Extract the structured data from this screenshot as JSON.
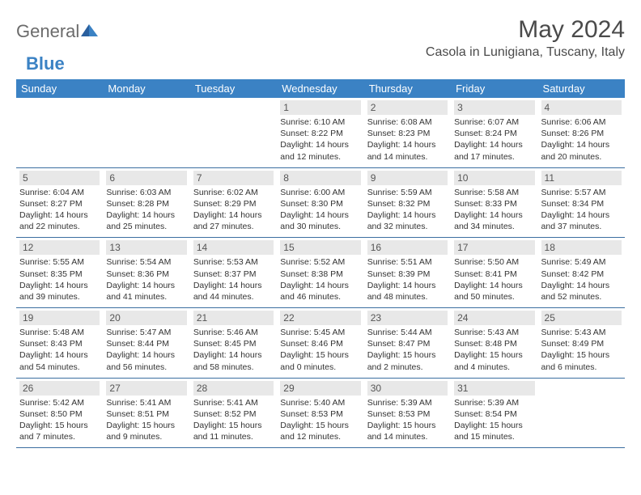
{
  "logo": {
    "text1": "General",
    "text2": "Blue"
  },
  "title": "May 2024",
  "location": "Casola in Lunigiana, Tuscany, Italy",
  "day_headers": [
    "Sunday",
    "Monday",
    "Tuesday",
    "Wednesday",
    "Thursday",
    "Friday",
    "Saturday"
  ],
  "colors": {
    "header_bg": "#3b82c4",
    "header_text": "#ffffff",
    "daynum_bg": "#e8e8e8",
    "daynum_text": "#555555",
    "border": "#3b6ea0",
    "title_color": "#4a4a4a"
  },
  "weeks": [
    [
      null,
      null,
      null,
      {
        "n": "1",
        "sr": "Sunrise: 6:10 AM",
        "ss": "Sunset: 8:22 PM",
        "d1": "Daylight: 14 hours",
        "d2": "and 12 minutes."
      },
      {
        "n": "2",
        "sr": "Sunrise: 6:08 AM",
        "ss": "Sunset: 8:23 PM",
        "d1": "Daylight: 14 hours",
        "d2": "and 14 minutes."
      },
      {
        "n": "3",
        "sr": "Sunrise: 6:07 AM",
        "ss": "Sunset: 8:24 PM",
        "d1": "Daylight: 14 hours",
        "d2": "and 17 minutes."
      },
      {
        "n": "4",
        "sr": "Sunrise: 6:06 AM",
        "ss": "Sunset: 8:26 PM",
        "d1": "Daylight: 14 hours",
        "d2": "and 20 minutes."
      }
    ],
    [
      {
        "n": "5",
        "sr": "Sunrise: 6:04 AM",
        "ss": "Sunset: 8:27 PM",
        "d1": "Daylight: 14 hours",
        "d2": "and 22 minutes."
      },
      {
        "n": "6",
        "sr": "Sunrise: 6:03 AM",
        "ss": "Sunset: 8:28 PM",
        "d1": "Daylight: 14 hours",
        "d2": "and 25 minutes."
      },
      {
        "n": "7",
        "sr": "Sunrise: 6:02 AM",
        "ss": "Sunset: 8:29 PM",
        "d1": "Daylight: 14 hours",
        "d2": "and 27 minutes."
      },
      {
        "n": "8",
        "sr": "Sunrise: 6:00 AM",
        "ss": "Sunset: 8:30 PM",
        "d1": "Daylight: 14 hours",
        "d2": "and 30 minutes."
      },
      {
        "n": "9",
        "sr": "Sunrise: 5:59 AM",
        "ss": "Sunset: 8:32 PM",
        "d1": "Daylight: 14 hours",
        "d2": "and 32 minutes."
      },
      {
        "n": "10",
        "sr": "Sunrise: 5:58 AM",
        "ss": "Sunset: 8:33 PM",
        "d1": "Daylight: 14 hours",
        "d2": "and 34 minutes."
      },
      {
        "n": "11",
        "sr": "Sunrise: 5:57 AM",
        "ss": "Sunset: 8:34 PM",
        "d1": "Daylight: 14 hours",
        "d2": "and 37 minutes."
      }
    ],
    [
      {
        "n": "12",
        "sr": "Sunrise: 5:55 AM",
        "ss": "Sunset: 8:35 PM",
        "d1": "Daylight: 14 hours",
        "d2": "and 39 minutes."
      },
      {
        "n": "13",
        "sr": "Sunrise: 5:54 AM",
        "ss": "Sunset: 8:36 PM",
        "d1": "Daylight: 14 hours",
        "d2": "and 41 minutes."
      },
      {
        "n": "14",
        "sr": "Sunrise: 5:53 AM",
        "ss": "Sunset: 8:37 PM",
        "d1": "Daylight: 14 hours",
        "d2": "and 44 minutes."
      },
      {
        "n": "15",
        "sr": "Sunrise: 5:52 AM",
        "ss": "Sunset: 8:38 PM",
        "d1": "Daylight: 14 hours",
        "d2": "and 46 minutes."
      },
      {
        "n": "16",
        "sr": "Sunrise: 5:51 AM",
        "ss": "Sunset: 8:39 PM",
        "d1": "Daylight: 14 hours",
        "d2": "and 48 minutes."
      },
      {
        "n": "17",
        "sr": "Sunrise: 5:50 AM",
        "ss": "Sunset: 8:41 PM",
        "d1": "Daylight: 14 hours",
        "d2": "and 50 minutes."
      },
      {
        "n": "18",
        "sr": "Sunrise: 5:49 AM",
        "ss": "Sunset: 8:42 PM",
        "d1": "Daylight: 14 hours",
        "d2": "and 52 minutes."
      }
    ],
    [
      {
        "n": "19",
        "sr": "Sunrise: 5:48 AM",
        "ss": "Sunset: 8:43 PM",
        "d1": "Daylight: 14 hours",
        "d2": "and 54 minutes."
      },
      {
        "n": "20",
        "sr": "Sunrise: 5:47 AM",
        "ss": "Sunset: 8:44 PM",
        "d1": "Daylight: 14 hours",
        "d2": "and 56 minutes."
      },
      {
        "n": "21",
        "sr": "Sunrise: 5:46 AM",
        "ss": "Sunset: 8:45 PM",
        "d1": "Daylight: 14 hours",
        "d2": "and 58 minutes."
      },
      {
        "n": "22",
        "sr": "Sunrise: 5:45 AM",
        "ss": "Sunset: 8:46 PM",
        "d1": "Daylight: 15 hours",
        "d2": "and 0 minutes."
      },
      {
        "n": "23",
        "sr": "Sunrise: 5:44 AM",
        "ss": "Sunset: 8:47 PM",
        "d1": "Daylight: 15 hours",
        "d2": "and 2 minutes."
      },
      {
        "n": "24",
        "sr": "Sunrise: 5:43 AM",
        "ss": "Sunset: 8:48 PM",
        "d1": "Daylight: 15 hours",
        "d2": "and 4 minutes."
      },
      {
        "n": "25",
        "sr": "Sunrise: 5:43 AM",
        "ss": "Sunset: 8:49 PM",
        "d1": "Daylight: 15 hours",
        "d2": "and 6 minutes."
      }
    ],
    [
      {
        "n": "26",
        "sr": "Sunrise: 5:42 AM",
        "ss": "Sunset: 8:50 PM",
        "d1": "Daylight: 15 hours",
        "d2": "and 7 minutes."
      },
      {
        "n": "27",
        "sr": "Sunrise: 5:41 AM",
        "ss": "Sunset: 8:51 PM",
        "d1": "Daylight: 15 hours",
        "d2": "and 9 minutes."
      },
      {
        "n": "28",
        "sr": "Sunrise: 5:41 AM",
        "ss": "Sunset: 8:52 PM",
        "d1": "Daylight: 15 hours",
        "d2": "and 11 minutes."
      },
      {
        "n": "29",
        "sr": "Sunrise: 5:40 AM",
        "ss": "Sunset: 8:53 PM",
        "d1": "Daylight: 15 hours",
        "d2": "and 12 minutes."
      },
      {
        "n": "30",
        "sr": "Sunrise: 5:39 AM",
        "ss": "Sunset: 8:53 PM",
        "d1": "Daylight: 15 hours",
        "d2": "and 14 minutes."
      },
      {
        "n": "31",
        "sr": "Sunrise: 5:39 AM",
        "ss": "Sunset: 8:54 PM",
        "d1": "Daylight: 15 hours",
        "d2": "and 15 minutes."
      },
      null
    ]
  ]
}
